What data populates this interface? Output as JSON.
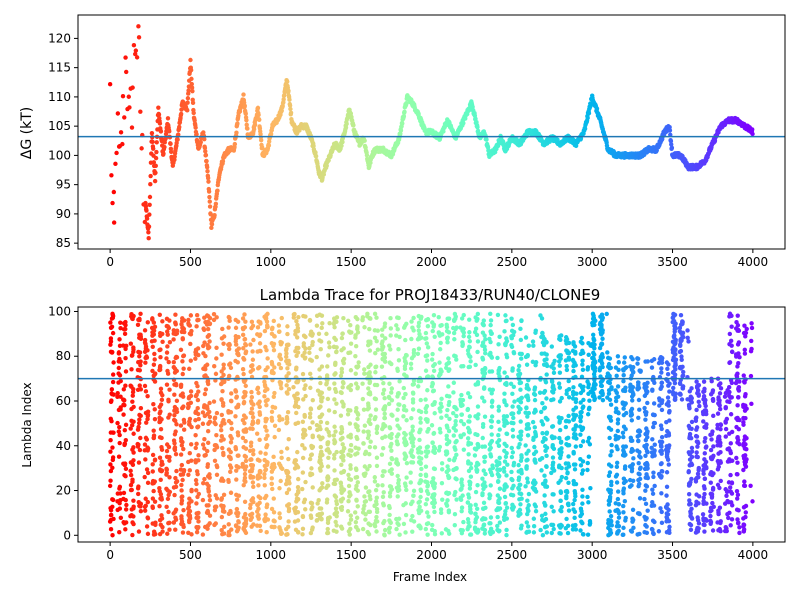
{
  "chart_data": [
    {
      "type": "scatter",
      "title": "",
      "xlabel": "",
      "ylabel": "ΔG (kT)",
      "xlim": [
        -200,
        4200
      ],
      "ylim": [
        84,
        124
      ],
      "xticks": [
        0,
        500,
        1000,
        1500,
        2000,
        2500,
        3000,
        3500,
        4000
      ],
      "yticks": [
        85,
        90,
        95,
        100,
        105,
        110,
        115,
        120
      ],
      "hline": 103.2,
      "hline_color": "#1f77b4",
      "colormap": "rainbow (red at frame 0 to violet at frame 4000)",
      "grid": false,
      "series": [
        {
          "x": [
            0,
            15,
            25,
            40,
            60,
            80,
            100,
            120,
            140,
            160,
            180,
            200,
            220,
            240,
            260,
            280,
            300,
            330,
            360,
            390,
            420,
            450,
            480,
            500,
            520,
            550,
            580,
            610,
            630,
            650,
            680,
            710,
            740,
            770,
            800,
            830,
            860,
            890,
            920,
            950,
            980,
            1010,
            1040,
            1070,
            1100,
            1130,
            1160,
            1190,
            1220,
            1250,
            1280,
            1300,
            1320,
            1340,
            1370,
            1400,
            1430,
            1460,
            1490,
            1520,
            1550,
            1580,
            1610,
            1630,
            1650,
            1700,
            1750,
            1800,
            1820,
            1850,
            1880,
            1920,
            1960,
            2000,
            2050,
            2100,
            2150,
            2200,
            2250,
            2300,
            2330,
            2360,
            2400,
            2430,
            2460,
            2500,
            2550,
            2600,
            2650,
            2700,
            2750,
            2800,
            2850,
            2900,
            2950,
            3000,
            3050,
            3100,
            3150,
            3200,
            3300,
            3350,
            3400,
            3450,
            3480,
            3500,
            3550,
            3600,
            3650,
            3700,
            3750,
            3800,
            3850,
            3900,
            3950,
            4000
          ],
          "y": [
            110,
            90,
            86,
            105,
            97,
            106,
            118,
            103,
            112,
            121,
            115,
            99,
            92,
            86,
            104,
            96,
            108,
            100,
            106,
            98,
            103,
            109,
            108,
            116,
            107,
            101,
            104,
            96,
            88,
            90,
            97,
            100,
            101,
            101,
            107,
            110,
            103,
            104,
            108,
            100,
            101,
            105,
            106,
            108,
            113,
            106,
            104,
            105,
            105,
            103,
            100,
            97,
            96,
            98,
            100,
            102,
            101,
            104,
            108,
            104,
            102,
            103,
            98,
            100,
            101,
            101,
            100,
            103,
            106,
            110,
            109,
            107,
            104,
            104,
            103,
            106,
            103,
            106,
            109,
            103,
            104,
            100,
            101,
            103,
            101,
            103,
            102,
            104,
            104,
            102,
            103,
            102,
            103,
            102,
            104,
            110,
            106,
            101,
            100,
            100,
            100,
            101,
            101,
            104,
            105,
            100,
            100,
            98,
            98,
            99,
            102,
            105,
            106,
            106,
            105,
            104
          ],
          "note_sparse_until": 220
        }
      ]
    },
    {
      "type": "scatter",
      "title": "Lambda Trace for PROJ18433/RUN40/CLONE9",
      "xlabel": "Frame Index",
      "ylabel": "Lambda Index",
      "xlim": [
        -200,
        4200
      ],
      "ylim": [
        -3,
        102
      ],
      "xticks": [
        0,
        500,
        1000,
        1500,
        2000,
        2500,
        3000,
        3500,
        4000
      ],
      "yticks": [
        0,
        20,
        40,
        60,
        80,
        100
      ],
      "hline": 70,
      "hline_color": "#1f77b4",
      "colormap": "rainbow (red at frame 0 to violet at frame 4000)",
      "grid": false,
      "series": [
        {
          "frames_start": 0,
          "frames_end": 4000,
          "lambda_min": 0,
          "lambda_max": 99,
          "bands": [
            {
              "x": [
                0,
                80
              ],
              "y": [
                0,
                99
              ]
            },
            {
              "x": [
                80,
                600
              ],
              "y": [
                0,
                99
              ]
            },
            {
              "x": [
                600,
                1150
              ],
              "y": [
                0,
                99
              ]
            },
            {
              "x": [
                1150,
                1300
              ],
              "y": [
                0,
                99
              ]
            },
            {
              "x": [
                1300,
                1600
              ],
              "y": [
                0,
                99
              ]
            },
            {
              "x": [
                1600,
                2000
              ],
              "y": [
                0,
                99
              ]
            },
            {
              "x": [
                2000,
                2700
              ],
              "y": [
                0,
                99
              ]
            },
            {
              "x": [
                2700,
                3000
              ],
              "y": [
                0,
                90
              ]
            },
            {
              "x": [
                3000,
                3100
              ],
              "y": [
                60,
                99
              ]
            },
            {
              "x": [
                3100,
                3500
              ],
              "y": [
                0,
                80
              ]
            },
            {
              "x": [
                3500,
                3600
              ],
              "y": [
                60,
                99
              ]
            },
            {
              "x": [
                3600,
                3850
              ],
              "y": [
                0,
                70
              ]
            },
            {
              "x": [
                3850,
                4000
              ],
              "y": [
                0,
                99
              ]
            }
          ]
        }
      ]
    }
  ]
}
